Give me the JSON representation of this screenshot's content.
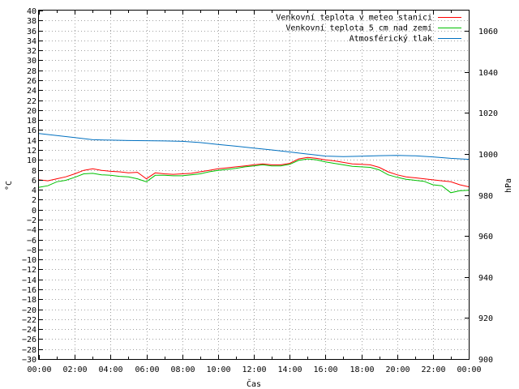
{
  "chart_data": {
    "type": "line",
    "title": "",
    "xlabel": "Čas",
    "ylabel": "°C",
    "y2label": "hPa",
    "x_ticks": [
      "00:00",
      "02:00",
      "04:00",
      "06:00",
      "08:00",
      "10:00",
      "12:00",
      "14:00",
      "16:00",
      "18:00",
      "20:00",
      "22:00",
      "00:00"
    ],
    "xlim_hours": [
      0,
      24
    ],
    "ylim": [
      -30,
      40
    ],
    "y_ticks": [
      40,
      38,
      36,
      34,
      32,
      30,
      28,
      26,
      24,
      22,
      20,
      18,
      16,
      14,
      12,
      10,
      8,
      6,
      4,
      2,
      0,
      -2,
      -4,
      -6,
      -8,
      -10,
      -12,
      -14,
      -16,
      -18,
      -20,
      -22,
      -24,
      -26,
      -28,
      -30
    ],
    "y2lim": [
      900,
      1070
    ],
    "y2_ticks": [
      1060,
      1040,
      1020,
      1000,
      980,
      960,
      940,
      920,
      900
    ],
    "grid": true,
    "legend_position": "top-right",
    "series": [
      {
        "name": "Venkovní teplota v meteo stanici",
        "color": "#ff0000",
        "axis": "left",
        "x": [
          0,
          0.5,
          1,
          1.5,
          2,
          2.5,
          3,
          3.5,
          4,
          4.5,
          5,
          5.5,
          6,
          6.5,
          7,
          7.5,
          8,
          8.5,
          9,
          9.5,
          10,
          10.5,
          11,
          11.5,
          12,
          12.5,
          13,
          13.5,
          14,
          14.5,
          15,
          15.5,
          16,
          16.5,
          17,
          17.5,
          18,
          18.5,
          19,
          19.5,
          20,
          20.5,
          21,
          21.5,
          22,
          22.5,
          23,
          23.5,
          24
        ],
        "values": [
          6,
          5.8,
          6.2,
          6.6,
          7.2,
          7.9,
          8.2,
          7.9,
          7.7,
          7.6,
          7.4,
          7.5,
          6.2,
          7.4,
          7.2,
          7.1,
          7.2,
          7.3,
          7.6,
          7.9,
          8.2,
          8.4,
          8.6,
          8.8,
          9.0,
          9.2,
          9.0,
          9.0,
          9.3,
          10.2,
          10.5,
          10.3,
          10.0,
          9.8,
          9.5,
          9.2,
          9.1,
          9.0,
          8.5,
          7.6,
          7.0,
          6.6,
          6.4,
          6.2,
          6.0,
          5.8,
          5.6,
          5.0,
          4.6
        ]
      },
      {
        "name": "Venkovní teplota 5 cm nad zemí",
        "color": "#00c000",
        "axis": "left",
        "x": [
          0,
          0.5,
          1,
          1.5,
          2,
          2.5,
          3,
          3.5,
          4,
          4.5,
          5,
          5.5,
          6,
          6.5,
          7,
          7.5,
          8,
          8.5,
          9,
          9.5,
          10,
          10.5,
          11,
          11.5,
          12,
          12.5,
          13,
          13.5,
          14,
          14.5,
          15,
          15.5,
          16,
          16.5,
          17,
          17.5,
          18,
          18.5,
          19,
          19.5,
          20,
          20.5,
          21,
          21.5,
          22,
          22.5,
          23,
          23.5,
          24
        ],
        "values": [
          4.5,
          4.8,
          5.6,
          5.9,
          6.5,
          7.2,
          7.3,
          7.0,
          6.9,
          6.7,
          6.6,
          6.2,
          5.6,
          6.9,
          6.9,
          6.8,
          6.8,
          7.0,
          7.2,
          7.6,
          7.9,
          8.1,
          8.3,
          8.6,
          8.8,
          9.0,
          8.8,
          8.8,
          9.1,
          9.9,
          10.2,
          10.0,
          9.6,
          9.3,
          9.0,
          8.7,
          8.6,
          8.5,
          8.0,
          7.0,
          6.5,
          6.1,
          5.9,
          5.7,
          5.0,
          4.8,
          3.4,
          3.8,
          3.9
        ]
      },
      {
        "name": "Atmosférický tlak",
        "color": "#0070c0",
        "axis": "right",
        "x": [
          0,
          1,
          2,
          3,
          4,
          5,
          6,
          7,
          8,
          9,
          10,
          11,
          12,
          13,
          14,
          15,
          16,
          17,
          18,
          19,
          20,
          21,
          22,
          23,
          24
        ],
        "values": [
          1010.0,
          1009.0,
          1008.0,
          1007.0,
          1006.8,
          1006.6,
          1006.5,
          1006.4,
          1006.2,
          1005.6,
          1004.7,
          1003.8,
          1002.9,
          1002.0,
          1001.0,
          1000.0,
          999.0,
          998.7,
          998.9,
          999.2,
          999.3,
          999.1,
          998.6,
          997.9,
          997.4
        ]
      }
    ]
  }
}
